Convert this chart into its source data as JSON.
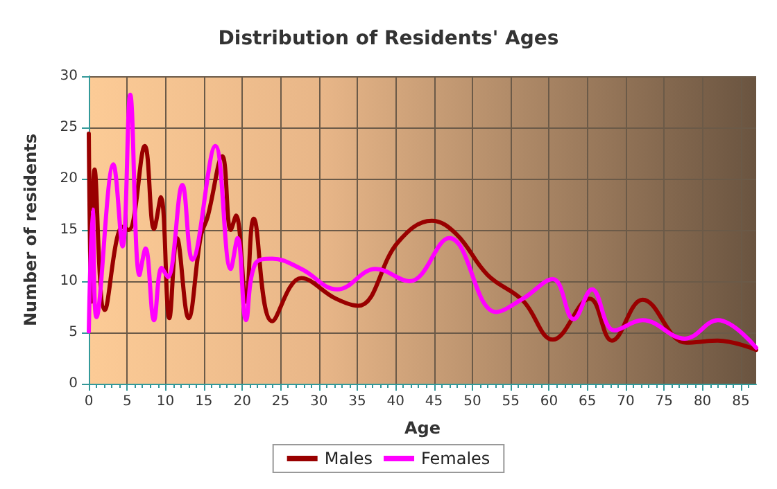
{
  "chart_data": {
    "type": "line",
    "title": "Distribution of Residents' Ages",
    "xlabel": "Age",
    "ylabel": "Number of residents",
    "xlim": [
      0,
      87
    ],
    "xticks": [
      0,
      5,
      10,
      15,
      20,
      25,
      30,
      35,
      40,
      45,
      50,
      55,
      60,
      65,
      70,
      75,
      80,
      85
    ],
    "ylim": [
      0,
      30
    ],
    "yticks": [
      0,
      5,
      10,
      15,
      20,
      25,
      30
    ],
    "grid": true,
    "legend": "bottom",
    "marker": "none",
    "line_style": "solid",
    "series": [
      {
        "name": "Males",
        "color": "#990000",
        "x": [
          0,
          0.35,
          0.75,
          2.1,
          4.4,
          5.2,
          7.3,
          8.5,
          9.4,
          10.5,
          11.5,
          13,
          14.6,
          15.5,
          17.4,
          18.5,
          19.2,
          20.5,
          21.5,
          23.9,
          27.7,
          32.2,
          35.1,
          40.3,
          44.7,
          47.9,
          52,
          56.6,
          60.5,
          65.3,
          68.2,
          72.2,
          77.9,
          82,
          87
        ],
        "values": [
          24.4,
          8,
          20.9,
          7.2,
          15.3,
          15,
          23.2,
          15.1,
          18.2,
          6.4,
          14.2,
          6.4,
          14.4,
          16.3,
          22.2,
          15,
          16.4,
          8,
          16.1,
          6.1,
          10.3,
          8.3,
          7.6,
          13.8,
          15.9,
          14.6,
          10.6,
          8.1,
          4.3,
          8.3,
          4.2,
          8.2,
          4,
          4.2,
          3.3
        ]
      },
      {
        "name": "Females",
        "color": "#ff00ff",
        "x": [
          0,
          0.5,
          1,
          3.2,
          4.4,
          5.4,
          6.6,
          7.4,
          8.5,
          9.5,
          10.3,
          12.2,
          13.5,
          16.5,
          18.5,
          19.4,
          20.5,
          21.7,
          23.9,
          27.7,
          32.4,
          37.4,
          41.8,
          47,
          53.1,
          56.6,
          60.5,
          63.2,
          65.6,
          68.5,
          72.2,
          77.7,
          82,
          87
        ],
        "values": [
          5.1,
          17,
          6.5,
          21.4,
          13.4,
          28.2,
          10.6,
          13.2,
          6.2,
          11.3,
          10.4,
          19.4,
          12.1,
          23.2,
          11.2,
          14.2,
          6.2,
          11.7,
          12.2,
          11.2,
          9.2,
          11.2,
          10,
          14.2,
          7,
          8.3,
          10.2,
          6.3,
          9.2,
          5.2,
          6.2,
          4.4,
          6.2,
          3.5
        ]
      }
    ]
  }
}
